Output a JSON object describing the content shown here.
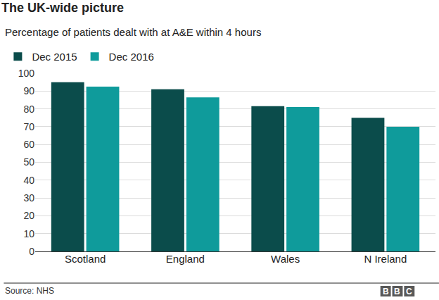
{
  "chart_data": {
    "type": "bar",
    "title": "The UK-wide picture",
    "subtitle": "Percentage of patients dealt with at A&E within 4 hours",
    "categories": [
      "Scotland",
      "England",
      "Wales",
      "N Ireland"
    ],
    "series": [
      {
        "name": "Dec 2015",
        "color": "#0b4c4b",
        "values": [
          95,
          91,
          81.5,
          75
        ]
      },
      {
        "name": "Dec 2016",
        "color": "#0f9b9b",
        "values": [
          92.5,
          86.5,
          81,
          70
        ]
      }
    ],
    "ylim": [
      0,
      100
    ],
    "yticks": [
      0,
      10,
      20,
      30,
      40,
      50,
      60,
      70,
      80,
      90,
      100
    ],
    "grid": true,
    "legend": "top-left",
    "annotations": [
      "Source: NHS",
      "BBC"
    ]
  }
}
